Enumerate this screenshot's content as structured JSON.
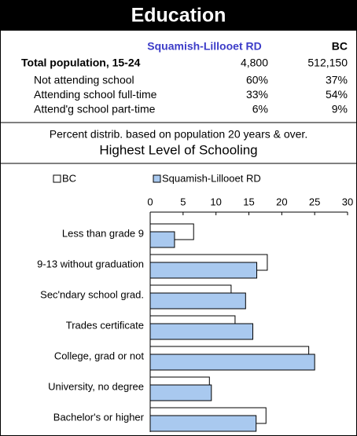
{
  "header": {
    "title": "Education"
  },
  "table": {
    "columns": [
      "Squamish-Lillooet RD",
      "BC"
    ],
    "rows": [
      [
        "Total population, 15-24",
        "4,800",
        "512,150"
      ],
      [
        "Not attending school",
        "60%",
        "37%"
      ],
      [
        "Attending school full-time",
        "33%",
        "54%"
      ],
      [
        "Attend'g school part-time",
        "6%",
        "9%"
      ]
    ]
  },
  "note": "Percent distrib. based on population 20 years & over.",
  "chart_data": {
    "type": "hbar",
    "title": "Highest Level of Schooling",
    "categories": [
      "Less than grade 9",
      "9-13 without graduation",
      "Sec'ndary school grad.",
      "Trades certificate",
      "College, grad or not",
      "University, no degree",
      "Bachelor's or higher"
    ],
    "series": [
      {
        "name": "BC",
        "color": "#ffffff",
        "values": [
          6.6,
          17.8,
          12.3,
          12.9,
          24.1,
          9.0,
          17.6
        ]
      },
      {
        "name": "Squamish-Lillooet RD",
        "color": "#a9c9ef",
        "values": [
          3.7,
          16.2,
          14.5,
          15.6,
          25.0,
          9.3,
          16.1
        ]
      }
    ],
    "xlim": [
      0,
      30
    ],
    "xticks": [
      0,
      5,
      10,
      15,
      20,
      25,
      30
    ],
    "grid": false,
    "legend": "top"
  }
}
